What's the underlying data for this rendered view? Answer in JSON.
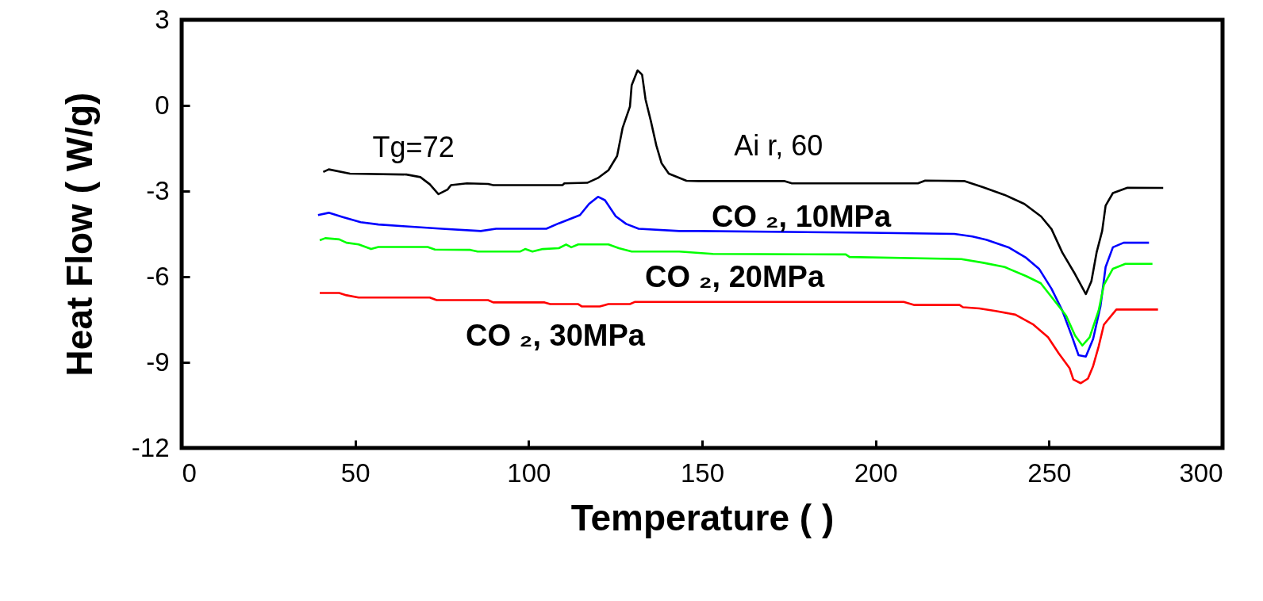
{
  "chart_data": {
    "type": "line",
    "xlabel": "Temperature (     )",
    "ylabel": "Heat Flow ( W/g)",
    "xlim": [
      0,
      300
    ],
    "xticks": [
      0,
      50,
      100,
      150,
      200,
      250,
      300
    ],
    "ylim": [
      -12,
      3
    ],
    "yticks": [
      -12,
      -9,
      -6,
      -3,
      0,
      3
    ],
    "annotations": [
      "Tg=72"
    ],
    "series": [
      {
        "name": "Ai r,  60",
        "color": "#000000",
        "x": [
          40.8,
          42.4,
          48.5,
          64.8,
          68.8,
          71.5,
          74.0,
          76.6,
          77.6,
          82.2,
          88.3,
          89.8,
          109.8,
          110.3,
          116.9,
          120.0,
          123.0,
          125.5,
          127.1,
          129.2,
          129.7,
          131.4,
          132.7,
          133.7,
          135.2,
          136.8,
          138.3,
          140.4,
          145.5,
          148.9,
          173.8,
          175.9,
          212.2,
          214.3,
          225.7,
          230.9,
          237.1,
          242.9,
          247.7,
          250.7,
          253.8,
          257.5,
          260.6,
          262.2,
          263.7,
          265.3,
          266.3,
          268.4,
          272.6,
          282.9
        ],
        "values": [
          -2.33,
          -2.24,
          -2.39,
          -2.42,
          -2.51,
          -2.76,
          -3.11,
          -2.95,
          -2.79,
          -2.73,
          -2.75,
          -2.79,
          -2.79,
          -2.73,
          -2.71,
          -2.54,
          -2.27,
          -1.77,
          -0.78,
          -0.04,
          0.71,
          1.23,
          1.08,
          0.21,
          -0.53,
          -1.4,
          -2.02,
          -2.39,
          -2.64,
          -2.65,
          -2.65,
          -2.73,
          -2.73,
          -2.63,
          -2.65,
          -2.86,
          -3.13,
          -3.45,
          -3.89,
          -4.33,
          -5.15,
          -5.91,
          -6.61,
          -6.16,
          -5.15,
          -4.4,
          -3.51,
          -3.07,
          -2.88,
          -2.89
        ]
      },
      {
        "name": "CO ₂, 10MPa",
        "color": "#0000ff",
        "x": [
          39.3,
          42.4,
          46.4,
          51.6,
          56.7,
          63.8,
          75.0,
          86.2,
          90.6,
          105.1,
          108.7,
          114.8,
          117.4,
          120.0,
          122.0,
          125.1,
          128.1,
          131.7,
          143.4,
          148.9,
          197.7,
          222.7,
          227.9,
          232.0,
          238.3,
          243.4,
          247.1,
          250.7,
          253.8,
          256.5,
          258.5,
          260.6,
          262.7,
          264.8,
          266.3,
          268.4,
          271.5,
          278.8
        ],
        "values": [
          -3.84,
          -3.76,
          -3.91,
          -4.09,
          -4.17,
          -4.23,
          -4.32,
          -4.4,
          -4.32,
          -4.32,
          -4.13,
          -3.84,
          -3.45,
          -3.2,
          -3.32,
          -3.88,
          -4.15,
          -4.32,
          -4.4,
          -4.4,
          -4.46,
          -4.5,
          -4.59,
          -4.71,
          -4.97,
          -5.34,
          -5.72,
          -6.42,
          -7.18,
          -8.06,
          -8.75,
          -8.8,
          -8.18,
          -7.05,
          -5.66,
          -4.97,
          -4.81,
          -4.81
        ]
      },
      {
        "name": "CO ₂, 20MPa",
        "color": "#00ff00",
        "x": [
          39.8,
          41.4,
          45.4,
          47.5,
          51.0,
          54.6,
          56.7,
          70.9,
          73.0,
          83.2,
          85.3,
          97.5,
          99.0,
          101.1,
          104.1,
          108.7,
          110.8,
          112.3,
          114.3,
          123.0,
          126.0,
          129.7,
          143.4,
          153.1,
          191.4,
          192.5,
          224.7,
          231.0,
          237.2,
          243.4,
          247.6,
          251.7,
          254.9,
          257.5,
          259.6,
          261.7,
          264.3,
          265.8,
          268.4,
          272.0,
          279.8
        ],
        "values": [
          -4.72,
          -4.65,
          -4.69,
          -4.81,
          -4.87,
          -5.03,
          -4.96,
          -4.96,
          -5.05,
          -5.06,
          -5.12,
          -5.12,
          -5.03,
          -5.12,
          -5.03,
          -5.0,
          -4.87,
          -4.97,
          -4.87,
          -4.87,
          -5.0,
          -5.12,
          -5.12,
          -5.2,
          -5.22,
          -5.31,
          -5.38,
          -5.51,
          -5.66,
          -5.98,
          -6.23,
          -6.86,
          -7.36,
          -8.06,
          -8.41,
          -8.12,
          -7.18,
          -6.29,
          -5.72,
          -5.55,
          -5.55
        ]
      },
      {
        "name": "CO ₂, 30MPa",
        "color": "#ff0000",
        "x": [
          39.8,
          45.4,
          47.5,
          51.0,
          71.5,
          73.5,
          88.3,
          89.8,
          104.6,
          106.2,
          114.3,
          115.3,
          120.5,
          123.0,
          129.2,
          130.7,
          152.0,
          208.1,
          211.2,
          224.2,
          225.2,
          229.9,
          234.6,
          240.3,
          245.5,
          249.7,
          252.8,
          255.9,
          257.0,
          259.1,
          261.2,
          262.7,
          264.3,
          265.8,
          269.4,
          281.4
        ],
        "values": [
          -6.57,
          -6.57,
          -6.65,
          -6.73,
          -6.73,
          -6.82,
          -6.82,
          -6.9,
          -6.9,
          -6.96,
          -6.96,
          -7.04,
          -7.04,
          -6.96,
          -6.96,
          -6.88,
          -6.88,
          -6.88,
          -6.99,
          -6.99,
          -7.07,
          -7.11,
          -7.2,
          -7.33,
          -7.68,
          -8.12,
          -8.69,
          -9.2,
          -9.6,
          -9.73,
          -9.57,
          -9.13,
          -8.44,
          -7.68,
          -7.15,
          -7.15
        ]
      }
    ]
  }
}
